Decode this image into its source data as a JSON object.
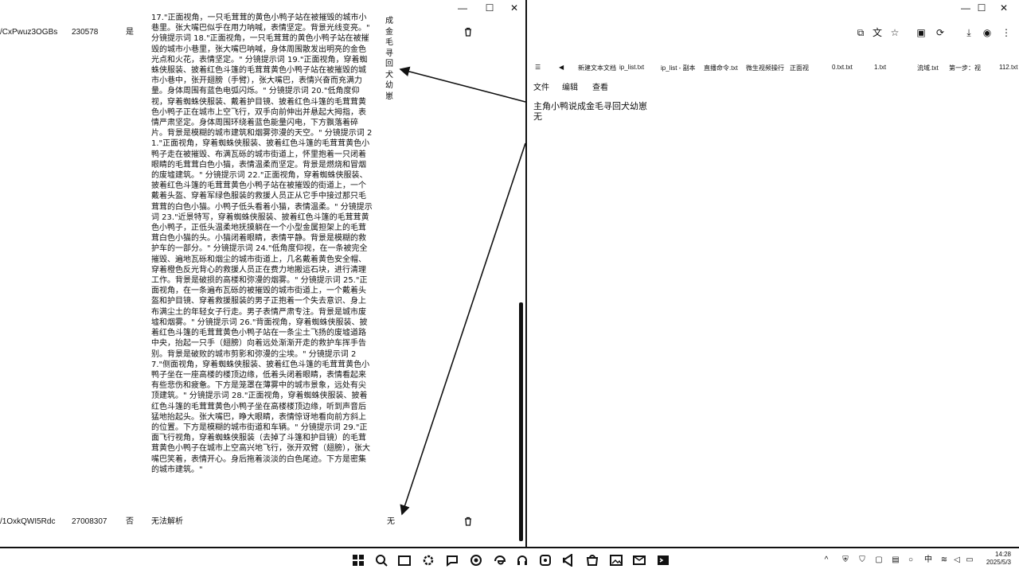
{
  "left_window": {
    "controls": {
      "minimize": "—",
      "maximize": "☐",
      "close": "✕"
    },
    "rows": [
      {
        "id_text": "/CxPwuz3OGBs",
        "number": "230578",
        "flag": "是",
        "content": "17.\"正面视角，一只毛茸茸的黄色小鸭子站在被摧毁的城市小巷里。张大嘴巴似乎在用力呐喊，表情坚定。背景光线变亮。\" 分镜提示词 18.\"正面视角，一只毛茸茸的黄色小鸭子站在被摧毁的城市小巷里，张大嘴巴呐喊，身体周围散发出明亮的金色光点和火花，表情坚定。\" 分镜提示词 19.\"正面视角，穿着蜘蛛侠服装、披着红色斗篷的毛茸茸黄色小鸭子站在被摧毁的城市小巷中，张开翅膀（手臂），张大嘴巴，表情兴奋而充满力量。身体周围有蓝色电弧闪烁。\" 分镜提示词 20.\"低角度仰视，穿着蜘蛛侠服装、戴着护目镜、披着红色斗篷的毛茸茸黄色小鸭子正在城市上空飞行，双手向前伸出并悬起大拇指，表情严肃坚定。身体周围环绕着蓝色能量闪电，下方飘落着碎片。背景是模糊的城市建筑和烟雾弥漫的天空。\" 分镜提示词 21.\"正面视角，穿着蜘蛛侠服装、披着红色斗篷的毛茸茸黄色小鸭子走在被摧毁、布满瓦砾的城市街道上，怀里抱着一只闭着眼睛的毛茸茸白色小猫，表情温柔而坚定。背景是燃烧和冒烟的废墟建筑。\" 分镜提示词 22.\"正面视角，穿着蜘蛛侠服装、披着红色斗篷的毛茸茸黄色小鸭子站在被摧毁的街道上，一个戴着头盔、穿着军绿色服装的救援人员正从它手中接过那只毛茸茸的白色小猫。小鸭子低头看着小猫，表情温柔。\" 分镜提示词 23.\"近景特写，穿着蜘蛛侠服装、披着红色斗篷的毛茸茸黄色小鸭子，正低头温柔地抚摸躺在一个小型金属担架上的毛茸茸白色小猫的头。小猫闭着眼睛，表情平静。背景是模糊的救护车的一部分。\" 分镜提示词 24.\"低角度仰视，在一条被完全摧毁、遍地瓦砾和烟尘的城市街道上，几名戴着黄色安全帽、穿着橙色反光背心的救援人员正在费力地搬运石块，进行清理工作。背景是破损的高楼和弥漫的烟雾。\" 分镜提示词 25.\"正面视角，在一条遍布瓦砾的被摧毁的城市街道上，一个戴着头盔和护目镜、穿着救援服装的男子正抱着一个失去意识、身上布满尘土的年轻女子行走。男子表情严肃专注。背景是城市废墟和烟雾。\" 分镜提示词 26.\"背面视角，穿着蜘蛛侠服装、披着红色斗篷的毛茸茸黄色小鸭子站在一条尘土飞扬的废墟道路中央，抬起一只手（翅膀）向着远处渐渐开走的救护车挥手告别。背景是破败的城市剪影和弥漫的尘埃。\" 分镜提示词 27.\"侧面视角，穿着蜘蛛侠服装、披着红色斗篷的毛茸茸黄色小鸭子坐在一座高楼的楼顶边缘，低着头闭着眼睛，表情看起来有些悲伤和疲惫。下方是笼罩在薄雾中的城市景象，远处有尖顶建筑。\" 分镜提示词 28.\"正面视角，穿着蜘蛛侠服装、披着红色斗篷的毛茸茸黄色小鸭子坐在高楼楼顶边缘，听到声音后猛地抬起头。张大嘴巴，睁大眼睛，表情惊讶地看向前方斜上的位置。下方是模糊的城市街道和车辆。\" 分镜提示词 29.\"正面飞行视角，穿着蜘蛛侠服装（去掉了斗篷和护目镜）的毛茸茸黄色小鸭子在城市上空高兴地飞行，张开双臂（翅膀），张大嘴巴笑着，表情开心。身后拖着淡淡的白色尾迹。下方是密集的城市建筑。\"",
        "vertical": [
          "成",
          "金",
          "毛",
          "寻",
          "回",
          "犬",
          "幼",
          "崽"
        ]
      },
      {
        "id_text": "/1OxkQWI5Rdc",
        "number": "27008307",
        "flag": "否",
        "content": "无法解析",
        "vertical": [
          "无"
        ]
      }
    ]
  },
  "right_window": {
    "toolbar_icons": [
      "screenshot-icon",
      "translate-icon",
      "star-icon",
      "save-icon",
      "refresh-icon",
      "download-icon",
      "account-icon",
      "more-icon"
    ],
    "toolbar_glyphs": [
      "⧉",
      "文",
      "☆",
      "▣",
      "⟳",
      "⤓",
      "◉",
      "⋮"
    ],
    "controls": {
      "minimize": "—",
      "maximize": "☐",
      "close": "✕"
    },
    "tabs": [
      "新建文本文档",
      "ip_list.txt",
      "ip_list - 副本",
      "直播命令.txt",
      "微生视频操行",
      "正面视",
      "0.txt.txt",
      "1.txt",
      "流域.txt",
      "第一步：视",
      "112.txt"
    ],
    "menu": [
      "文件",
      "编辑",
      "查看"
    ],
    "editor_lines": [
      "主角小鸭说成金毛寻回犬幼崽",
      "无"
    ]
  },
  "taskbar": {
    "apps": [
      "windows-icon",
      "search-icon",
      "file-explorer-icon",
      "settings-icon",
      "chat-icon",
      "chrome-icon",
      "edge-icon",
      "headset-icon",
      "app-icon",
      "vscode-icon",
      "store-icon",
      "photo-icon",
      "mail-icon",
      "terminal-icon"
    ],
    "tray": [
      "chevron-up-icon",
      "shield-icon",
      "security-icon",
      "network-app-icon",
      "media-icon",
      "circle-icon",
      "wifi-bar-icon",
      "ime-zh-icon",
      "wifi-icon",
      "volume-icon",
      "battery-icon"
    ],
    "tray_glyphs": [
      "^",
      "⛨",
      "⛉",
      "▢",
      "▤",
      "○",
      "▮",
      "中",
      "≋",
      "◁",
      "▭"
    ],
    "time": "14:28",
    "date": "2025/5/3"
  }
}
